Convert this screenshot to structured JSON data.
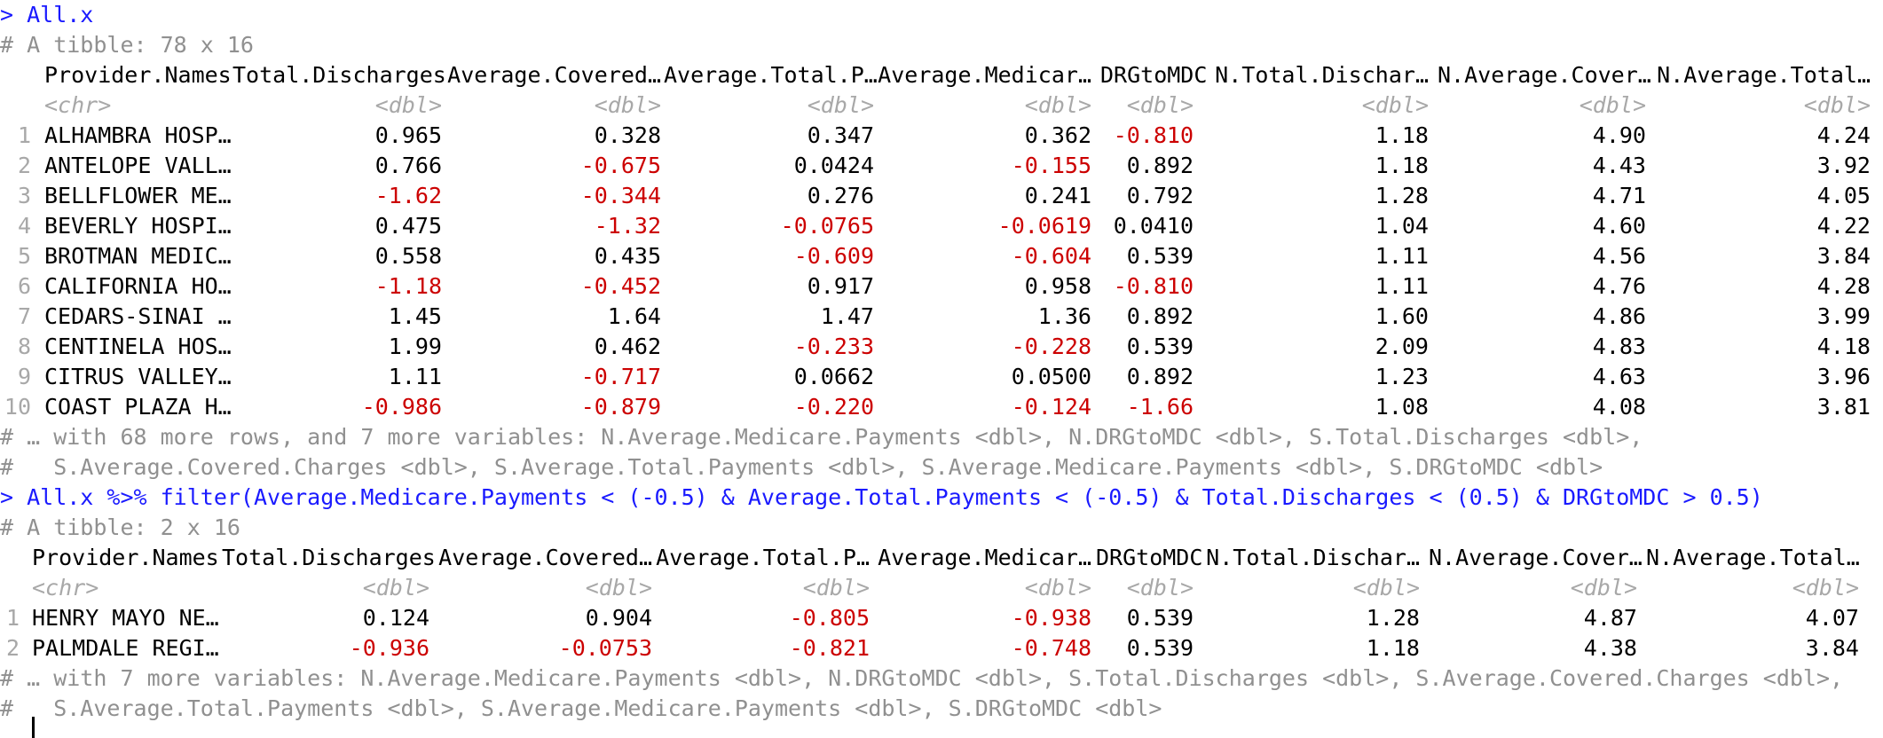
{
  "console": {
    "cmd1": "> All.x",
    "t1_dim": "# A tibble: 78 x 16",
    "t1_headers": [
      "Provider.Names",
      "Total.Discharges",
      "Average.Covered…",
      "Average.Total.P…",
      "Average.Medicar…",
      "DRGtoMDC",
      "N.Total.Dischar…",
      "N.Average.Cover…",
      "N.Average.Total…"
    ],
    "t1_types": [
      "<chr>",
      "<dbl>",
      "<dbl>",
      "<dbl>",
      "<dbl>",
      "<dbl>",
      "<dbl>",
      "<dbl>",
      "<dbl>"
    ],
    "t1_rows": [
      {
        "n": "1",
        "name": "ALHAMBRA HOSP…",
        "v": [
          "0.965",
          "0.328",
          "0.347",
          "0.362",
          "-0.810",
          "1.18",
          "4.90",
          "4.24"
        ]
      },
      {
        "n": "2",
        "name": "ANTELOPE VALL…",
        "v": [
          "0.766",
          "-0.675",
          "0.0424",
          "-0.155",
          "0.892",
          "1.18",
          "4.43",
          "3.92"
        ]
      },
      {
        "n": "3",
        "name": "BELLFLOWER ME…",
        "v": [
          "-1.62",
          "-0.344",
          "0.276",
          "0.241",
          "0.792",
          "1.28",
          "4.71",
          "4.05"
        ]
      },
      {
        "n": "4",
        "name": "BEVERLY HOSPI…",
        "v": [
          "0.475",
          "-1.32",
          "-0.0765",
          "-0.0619",
          "0.0410",
          "1.04",
          "4.60",
          "4.22"
        ]
      },
      {
        "n": "5",
        "name": "BROTMAN MEDIC…",
        "v": [
          "0.558",
          "0.435",
          "-0.609",
          "-0.604",
          "0.539",
          "1.11",
          "4.56",
          "3.84"
        ]
      },
      {
        "n": "6",
        "name": "CALIFORNIA HO…",
        "v": [
          "-1.18",
          "-0.452",
          "0.917",
          "0.958",
          "-0.810",
          "1.11",
          "4.76",
          "4.28"
        ]
      },
      {
        "n": "7",
        "name": "CEDARS-SINAI …",
        "v": [
          "1.45",
          "1.64",
          "1.47",
          "1.36",
          "0.892",
          "1.60",
          "4.86",
          "3.99"
        ]
      },
      {
        "n": "8",
        "name": "CENTINELA HOS…",
        "v": [
          "1.99",
          "0.462",
          "-0.233",
          "-0.228",
          "0.539",
          "2.09",
          "4.83",
          "4.18"
        ]
      },
      {
        "n": "9",
        "name": "CITRUS VALLEY…",
        "v": [
          "1.11",
          "-0.717",
          "0.0662",
          "0.0500",
          "0.892",
          "1.23",
          "4.63",
          "3.96"
        ]
      },
      {
        "n": "10",
        "name": "COAST PLAZA H…",
        "v": [
          "-0.986",
          "-0.879",
          "-0.220",
          "-0.124",
          "-1.66",
          "1.08",
          "4.08",
          "3.81"
        ]
      }
    ],
    "t1_footer1": "# … with 68 more rows, and 7 more variables: N.Average.Medicare.Payments <dbl>, N.DRGtoMDC <dbl>, S.Total.Discharges <dbl>,",
    "t1_footer2": "#   S.Average.Covered.Charges <dbl>, S.Average.Total.Payments <dbl>, S.Average.Medicare.Payments <dbl>, S.DRGtoMDC <dbl>",
    "cmd2": "> All.x %>% filter(Average.Medicare.Payments < (-0.5) & Average.Total.Payments < (-0.5) & Total.Discharges < (0.5) & DRGtoMDC > 0.5)",
    "t2_dim": "# A tibble: 2 x 16",
    "t2_headers": [
      "Provider.Names",
      "Total.Discharges",
      "Average.Covered…",
      "Average.Total.P…",
      "Average.Medicar…",
      "DRGtoMDC",
      "N.Total.Dischar…",
      "N.Average.Cover…",
      "N.Average.Total…"
    ],
    "t2_types": [
      "<chr>",
      "<dbl>",
      "<dbl>",
      "<dbl>",
      "<dbl>",
      "<dbl>",
      "<dbl>",
      "<dbl>",
      "<dbl>"
    ],
    "t2_rows": [
      {
        "n": "1",
        "name": "HENRY MAYO NE…",
        "v": [
          "0.124",
          "0.904",
          "-0.805",
          "-0.938",
          "0.539",
          "1.28",
          "4.87",
          "4.07"
        ]
      },
      {
        "n": "2",
        "name": "PALMDALE REGI…",
        "v": [
          "-0.936",
          "-0.0753",
          "-0.821",
          "-0.748",
          "0.539",
          "1.18",
          "4.38",
          "3.84"
        ]
      }
    ],
    "t2_footer1": "# … with 7 more variables: N.Average.Medicare.Payments <dbl>, N.DRGtoMDC <dbl>, S.Total.Discharges <dbl>, S.Average.Covered.Charges <dbl>,",
    "t2_footer2": "#   S.Average.Total.Payments <dbl>, S.Average.Medicare.Payments <dbl>, S.DRGtoMDC <dbl>"
  },
  "colors": {
    "command": "#1a1aff",
    "negative": "#cc0000",
    "comment": "#909090",
    "type": "#a8a8a8"
  }
}
